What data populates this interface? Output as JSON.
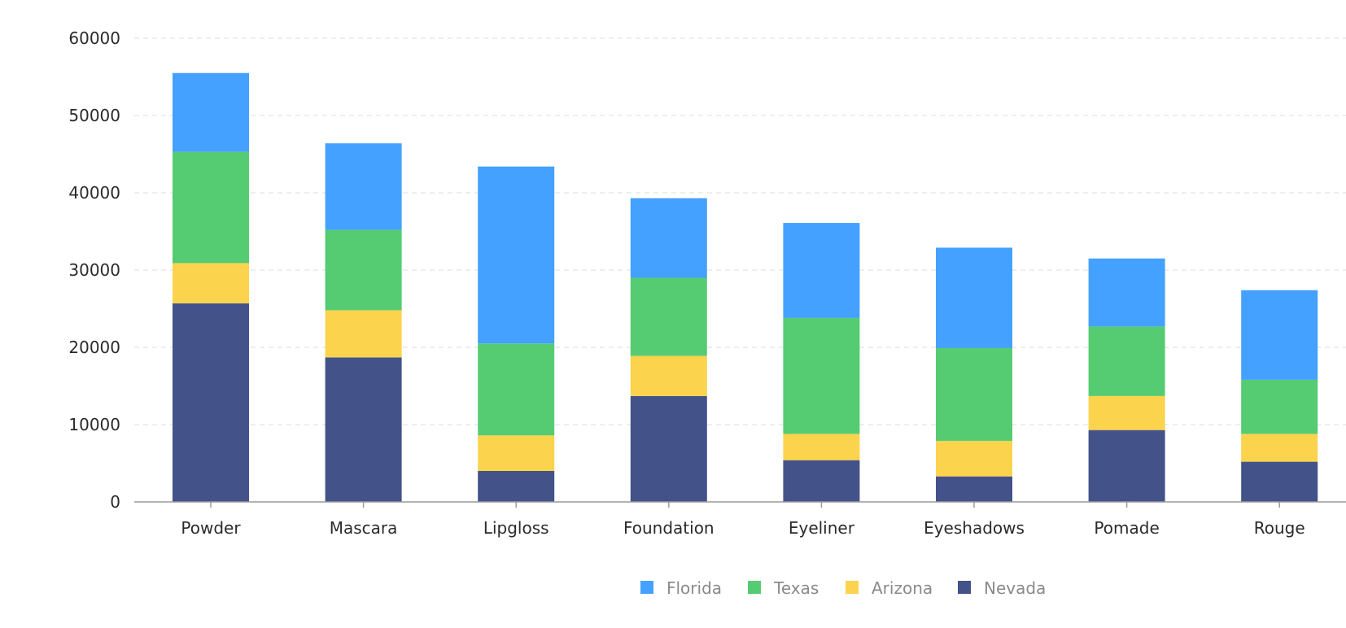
{
  "chart_data": {
    "type": "bar",
    "stacked": true,
    "title": "",
    "xlabel": "",
    "ylabel": "",
    "ylim": [
      0,
      60000
    ],
    "yticks": [
      0,
      10000,
      20000,
      30000,
      40000,
      50000,
      60000
    ],
    "grid": true,
    "legend_position": "bottom-center",
    "categories": [
      "Powder",
      "Mascara",
      "Lipgloss",
      "Foundation",
      "Eyeliner",
      "Eyeshadows",
      "Pomade",
      "Rouge"
    ],
    "series": [
      {
        "name": "Nevada",
        "color": "#435289",
        "values": [
          25700,
          18700,
          4000,
          13700,
          5400,
          3300,
          9300,
          5200
        ]
      },
      {
        "name": "Arizona",
        "color": "#fcd34d",
        "values": [
          5200,
          6100,
          4600,
          5200,
          3400,
          4600,
          4400,
          3600
        ]
      },
      {
        "name": "Texas",
        "color": "#55cc72",
        "values": [
          14400,
          10400,
          11900,
          10100,
          15000,
          12000,
          9000,
          7000
        ]
      },
      {
        "name": "Florida",
        "color": "#44a1ff",
        "values": [
          10200,
          11200,
          22900,
          10300,
          12300,
          13000,
          8800,
          11600
        ]
      }
    ],
    "legend_order": [
      "Florida",
      "Texas",
      "Arizona",
      "Nevada"
    ]
  },
  "style": {
    "axis_color": "#9a9a9a",
    "grid_color": "#dddddd"
  }
}
